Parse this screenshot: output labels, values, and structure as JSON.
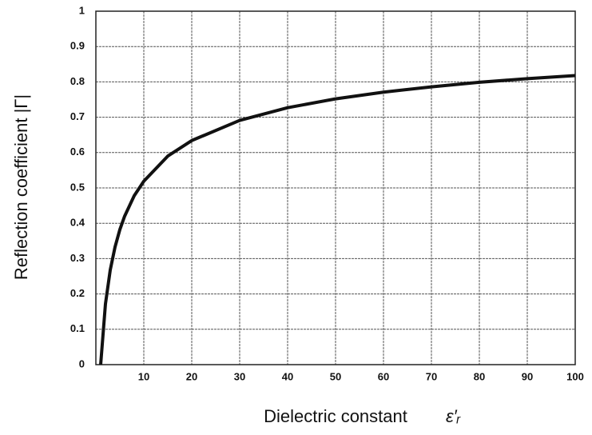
{
  "chart_data": {
    "type": "line",
    "xlabel": "Dielectric constant",
    "xlabel_symbol": "ε′ᵣ",
    "ylabel": "Reflection coefficient |Γ|",
    "x": [
      1,
      2,
      3,
      4,
      5,
      6,
      8,
      10,
      15,
      20,
      30,
      40,
      50,
      60,
      70,
      80,
      90,
      100
    ],
    "series": [
      {
        "color": "#111111",
        "values": [
          0,
          0.172,
          0.268,
          0.333,
          0.382,
          0.42,
          0.478,
          0.519,
          0.59,
          0.634,
          0.691,
          0.727,
          0.752,
          0.771,
          0.786,
          0.799,
          0.809,
          0.818
        ]
      }
    ],
    "xlim": [
      0,
      100
    ],
    "xticks": [
      10,
      20,
      30,
      40,
      50,
      60,
      70,
      80,
      90,
      100
    ],
    "ylim": [
      0,
      1
    ],
    "yticks": [
      0,
      0.1,
      0.2,
      0.3,
      0.4,
      0.5,
      0.6,
      0.7,
      0.8,
      0.9,
      1
    ],
    "grid": true
  }
}
